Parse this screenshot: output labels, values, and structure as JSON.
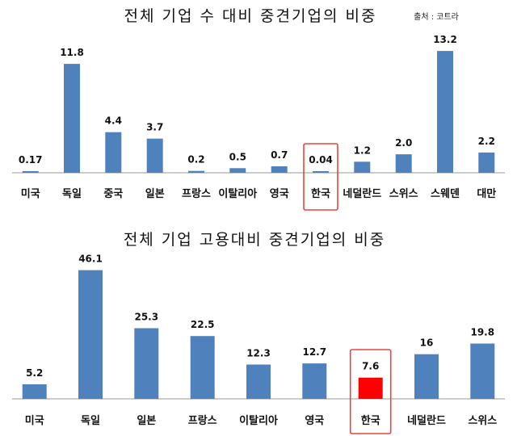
{
  "source": "출처 : 코트라",
  "highlight": {
    "box_color": "#e8453c"
  },
  "chart_data": [
    {
      "type": "bar",
      "title": "전체 기업 수 대비 중견기업의 비중",
      "categories": [
        "미국",
        "독일",
        "중국",
        "일본",
        "프랑스",
        "이탈리아",
        "영국",
        "한국",
        "네덜란드",
        "스위스",
        "스웨덴",
        "대만"
      ],
      "values": [
        0.17,
        11.8,
        4.4,
        3.7,
        0.2,
        0.5,
        0.7,
        0.04,
        1.2,
        2.0,
        13.2,
        2.2
      ],
      "value_labels": [
        "0.17",
        "11.8",
        "4.4",
        "3.7",
        "0.2",
        "0.5",
        "0.7",
        "0.04",
        "1.2",
        "2.0",
        "13.2",
        "2.2"
      ],
      "bar_colors": [
        "#4f81bd",
        "#4f81bd",
        "#4f81bd",
        "#4f81bd",
        "#4f81bd",
        "#4f81bd",
        "#4f81bd",
        "#4f81bd",
        "#4f81bd",
        "#4f81bd",
        "#4f81bd",
        "#4f81bd"
      ],
      "highlighted_category": "한국",
      "ylim": [
        0,
        14
      ],
      "grid": false,
      "xlabel": "",
      "ylabel": ""
    },
    {
      "type": "bar",
      "title": "전체 기업 고용대비 중견기업의 비중",
      "categories": [
        "미국",
        "독일",
        "일본",
        "프랑스",
        "이탈리아",
        "영국",
        "한국",
        "네덜란드",
        "스위스"
      ],
      "values": [
        5.2,
        46.1,
        25.3,
        22.5,
        12.3,
        12.7,
        7.6,
        16,
        19.8
      ],
      "value_labels": [
        "5.2",
        "46.1",
        "25.3",
        "22.5",
        "12.3",
        "12.7",
        "7.6",
        "16",
        "19.8"
      ],
      "bar_colors": [
        "#4f81bd",
        "#4f81bd",
        "#4f81bd",
        "#4f81bd",
        "#4f81bd",
        "#4f81bd",
        "#ff0000",
        "#4f81bd",
        "#4f81bd"
      ],
      "highlighted_category": "한국",
      "ylim": [
        0,
        48
      ],
      "grid": false,
      "xlabel": "",
      "ylabel": ""
    }
  ]
}
